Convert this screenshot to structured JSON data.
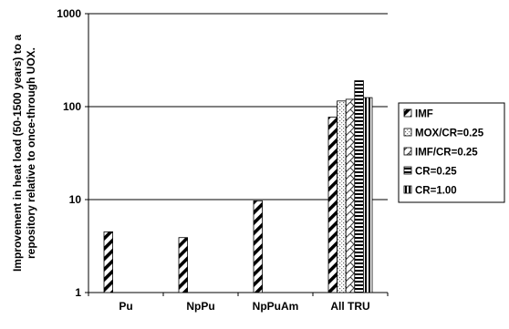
{
  "chart_data": {
    "type": "bar",
    "yscale": "log",
    "ylim": [
      1,
      1000
    ],
    "yticks": [
      "1",
      "10",
      "100",
      "1000"
    ],
    "ylabel_lines": [
      "Improvement in heat load (50-1500 years) to a",
      "repository relative to once-through UOX."
    ],
    "xlabel": "",
    "grid": true,
    "legend_position": "right",
    "categories": [
      "Pu",
      "NpPu",
      "NpPuAm",
      "All TRU"
    ],
    "series": [
      {
        "name": "IMF",
        "pattern": "diag-wide",
        "values": [
          4.5,
          3.9,
          9.7,
          77
        ]
      },
      {
        "name": "MOX/CR=0.25",
        "pattern": "dots",
        "values": [
          null,
          null,
          null,
          115
        ]
      },
      {
        "name": "IMF/CR=0.25",
        "pattern": "weave",
        "values": [
          null,
          null,
          null,
          120
        ]
      },
      {
        "name": "CR=0.25",
        "pattern": "horizontal",
        "values": [
          null,
          null,
          null,
          190
        ]
      },
      {
        "name": "CR=1.00",
        "pattern": "vertical",
        "values": [
          null,
          null,
          null,
          125
        ]
      }
    ]
  }
}
